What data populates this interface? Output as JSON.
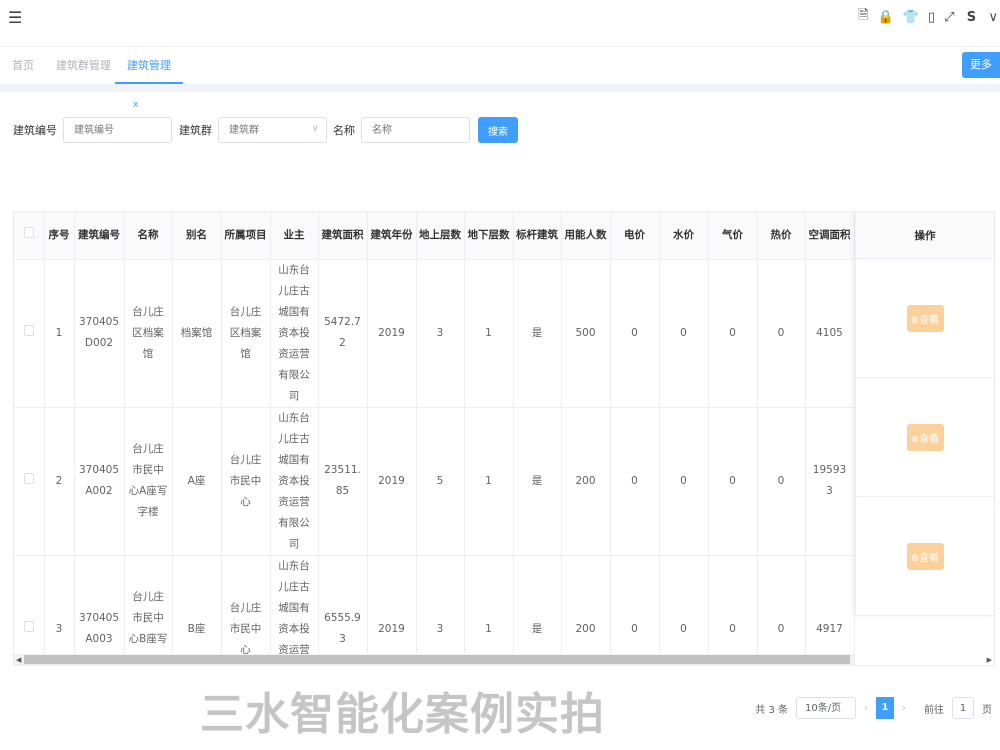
{
  "header": {
    "menu_icon": "☰",
    "tool_icons": [
      "wrench-doc-icon",
      "lock-icon",
      "shirt-icon",
      "phone-doc-icon",
      "fullscreen-icon"
    ]
  },
  "tabs": [
    {
      "label": "首页"
    },
    {
      "label": "建筑群管理"
    },
    {
      "label": "建筑管理",
      "close": "x"
    }
  ],
  "more_button": "更多 ∨",
  "search": {
    "code_label": "建筑编号",
    "code_placeholder": "建筑编号",
    "group_label": "建筑群",
    "group_placeholder": "建筑群",
    "name_label": "名称",
    "name_placeholder": "名称",
    "button": "搜索"
  },
  "table": {
    "columns": [
      "序号",
      "建筑编号",
      "名称",
      "别名",
      "所属项目",
      "业主",
      "建筑面积",
      "建筑年份",
      "地上层数",
      "地下层数",
      "标杆建筑",
      "用能人数",
      "电价",
      "水价",
      "气价",
      "热价",
      "空调面积"
    ],
    "action_header": "操作",
    "action_label": "⊕查看",
    "rows": [
      [
        "1",
        "370405D002",
        "台儿庄区档案馆",
        "档案馆",
        "台儿庄区档案馆",
        "山东台儿庄古城国有资本投资运营有限公司",
        "5472.72",
        "2019",
        "3",
        "1",
        "是",
        "500",
        "0",
        "0",
        "0",
        "0",
        "4105"
      ],
      [
        "2",
        "370405A002",
        "台儿庄市民中心A座写字楼",
        "A座",
        "台儿庄市民中心",
        "山东台儿庄古城国有资本投资运营有限公司",
        "23511.85",
        "2019",
        "5",
        "1",
        "是",
        "200",
        "0",
        "0",
        "0",
        "0",
        "195933"
      ],
      [
        "3",
        "370405A003",
        "台儿庄市民中心B座写字楼",
        "B座",
        "台儿庄市民中心",
        "山东台儿庄古城国有资本投资运营有限公司",
        "6555.93",
        "2019",
        "3",
        "1",
        "是",
        "200",
        "0",
        "0",
        "0",
        "0",
        "4917"
      ]
    ]
  },
  "pagination": {
    "total": "共 3 条",
    "page_size": "10条/页",
    "current": "1",
    "goto_label": "前往",
    "goto_value": "1",
    "page_suffix": "页"
  },
  "watermark": "三水智能化案例实拍",
  "colors": {
    "primary": "#409eff",
    "view_button": "#fcd09a"
  }
}
